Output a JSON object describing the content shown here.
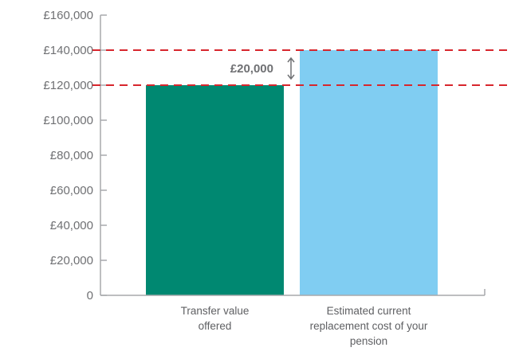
{
  "chart_data": {
    "type": "bar",
    "categories": [
      [
        "Transfer value",
        "offered"
      ],
      [
        "Estimated current",
        "replacement cost of your",
        "pension"
      ]
    ],
    "values": [
      120000,
      140000
    ],
    "ylim": [
      0,
      160000
    ],
    "yticks": [
      0,
      20000,
      40000,
      60000,
      80000,
      100000,
      120000,
      140000,
      160000
    ],
    "ytick_labels": [
      "0",
      "£20,000",
      "£40,000",
      "£60,000",
      "£80,000",
      "£100,000",
      "£120,000",
      "£140,000",
      "£160,000"
    ],
    "bar_colors": [
      "#008871",
      "#80cdf2"
    ],
    "reference_lines": [
      120000,
      140000
    ],
    "reference_line_color": "#d7262d",
    "gap": {
      "from": 120000,
      "to": 140000,
      "label": "£20,000"
    },
    "grid": false
  }
}
